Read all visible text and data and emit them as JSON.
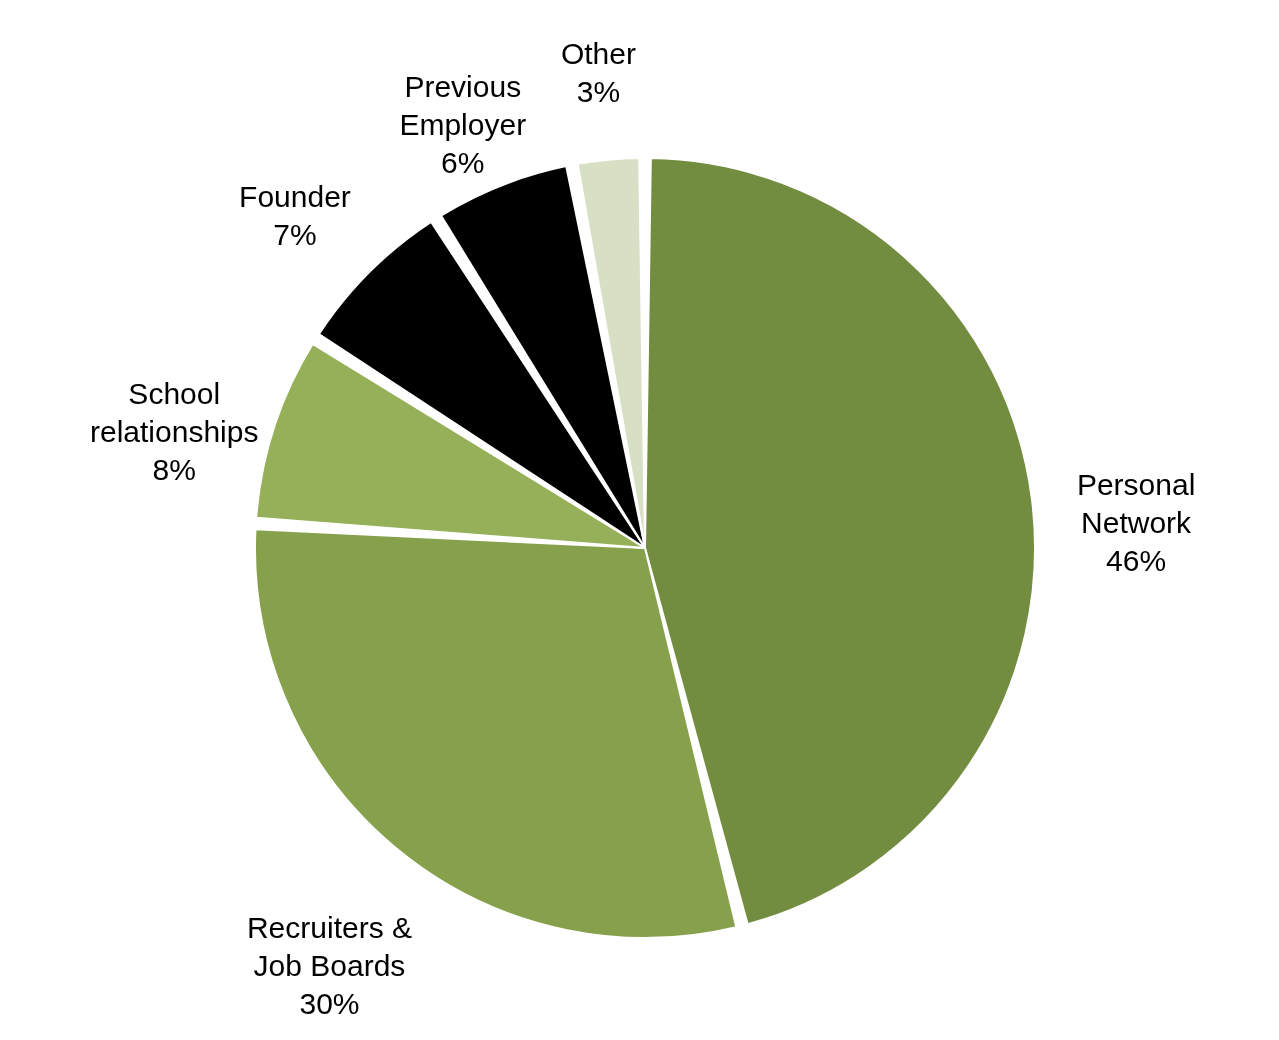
{
  "chart_data": {
    "type": "pie",
    "categories": [
      "Personal Network",
      "Recruiters & Job Boards",
      "School relationships",
      "Founder",
      "Previous Employer",
      "Other"
    ],
    "values": [
      46,
      30,
      8,
      7,
      6,
      3
    ],
    "value_labels": [
      "46%",
      "30%",
      "8%",
      "7%",
      "6%",
      "3%"
    ],
    "colors": [
      "#728c40",
      "#86a04c",
      "#96b05a",
      "#000000",
      "#000000",
      "#d7e0c4"
    ],
    "legend": false
  }
}
